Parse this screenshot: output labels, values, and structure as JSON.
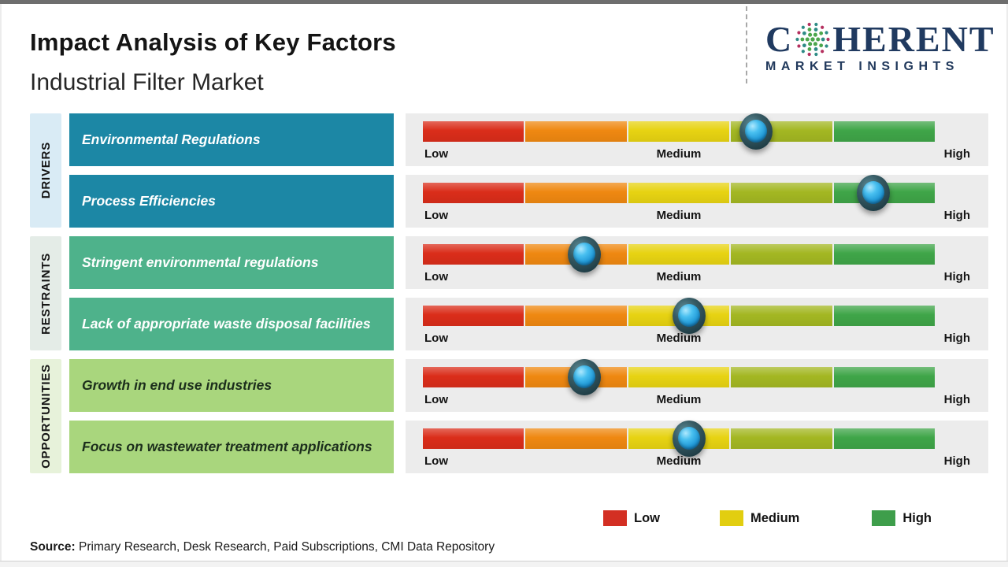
{
  "header": {
    "title": "Impact Analysis of Key Factors",
    "subtitle": "Industrial Filter Market",
    "logo": {
      "word_start": "C",
      "word_end": "HERENT",
      "tagline": "MARKET INSIGHTS"
    }
  },
  "scale_labels": {
    "low": "Low",
    "medium": "Medium",
    "high": "High"
  },
  "slider": {
    "segment_colors": [
      "#da2d1a",
      "#ef8811",
      "#e7d312",
      "#a3b722",
      "#3fa548"
    ]
  },
  "groups": [
    {
      "category": "DRIVERS",
      "band_color": "#d9ebf5",
      "box_color": "#1c87a5",
      "text_color": "#ffffff",
      "factors": [
        {
          "label": "Environmental Regulations",
          "impact_pct": 65
        },
        {
          "label": "Process Efficiencies",
          "impact_pct": 88
        }
      ]
    },
    {
      "category": "RESTRAINTS",
      "band_color": "#e4ece7",
      "box_color": "#4eb28b",
      "text_color": "#ffffff",
      "factors": [
        {
          "label": "Stringent environmental regulations",
          "impact_pct": 31.5
        },
        {
          "label": "Lack of appropriate waste disposal facilities",
          "impact_pct": 52
        }
      ]
    },
    {
      "category": "OPPORTUNITIES",
      "band_color": "#e7f2da",
      "box_color": "#a9d67d",
      "text_color": "#1c2e1c",
      "factors": [
        {
          "label": "Growth in end use industries",
          "impact_pct": 31.5
        },
        {
          "label": "Focus on wastewater treatment applications",
          "impact_pct": 52
        }
      ]
    }
  ],
  "legend": [
    {
      "label": "Low",
      "color": "#d32f23"
    },
    {
      "label": "Medium",
      "color": "#e2ce10"
    },
    {
      "label": "High",
      "color": "#3e9e4b"
    }
  ],
  "source": {
    "prefix": "Source:",
    "text": " Primary Research, Desk Research, Paid Subscriptions, CMI Data Repository"
  },
  "chart_data": {
    "type": "bar",
    "title": "Impact Analysis of Key Factors",
    "subtitle": "Industrial Filter Market",
    "axis_scale": [
      "Low",
      "Medium",
      "High"
    ],
    "axis_range_pct": [
      0,
      100
    ],
    "legend": [
      "Low",
      "Medium",
      "High"
    ],
    "legend_position": "bottom-right",
    "series": [
      {
        "group": "DRIVERS",
        "factor": "Environmental Regulations",
        "impact_pct": 65,
        "impact_level": "Medium-High"
      },
      {
        "group": "DRIVERS",
        "factor": "Process Efficiencies",
        "impact_pct": 88,
        "impact_level": "High"
      },
      {
        "group": "RESTRAINTS",
        "factor": "Stringent environmental regulations",
        "impact_pct": 31.5,
        "impact_level": "Low-Medium"
      },
      {
        "group": "RESTRAINTS",
        "factor": "Lack of appropriate waste disposal facilities",
        "impact_pct": 52,
        "impact_level": "Medium"
      },
      {
        "group": "OPPORTUNITIES",
        "factor": "Growth in end use industries",
        "impact_pct": 31.5,
        "impact_level": "Low-Medium"
      },
      {
        "group": "OPPORTUNITIES",
        "factor": "Focus on wastewater treatment applications",
        "impact_pct": 52,
        "impact_level": "Medium"
      }
    ]
  }
}
